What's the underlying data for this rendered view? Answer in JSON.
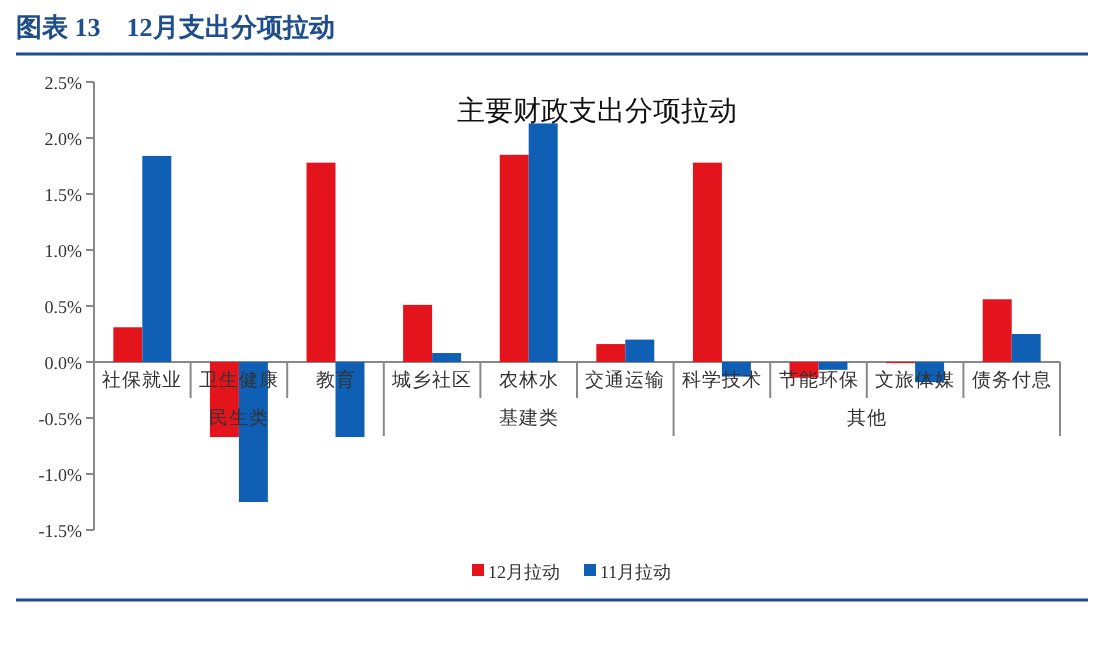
{
  "chart_data": {
    "type": "bar",
    "title": "图表 13　12月支出分项拉动",
    "subtitle": "主要财政支出分项拉动",
    "categories": [
      "社保就业",
      "卫生健康",
      "教育",
      "城乡社区",
      "农林水",
      "交通运输",
      "科学技术",
      "节能环保",
      "文旅体媒",
      "债务付息"
    ],
    "series": [
      {
        "name": "12月拉动",
        "color": "#e3141b",
        "values": [
          0.31,
          -0.67,
          1.78,
          0.51,
          1.85,
          0.16,
          1.78,
          -0.14,
          -0.01,
          0.56
        ]
      },
      {
        "name": "11月拉动",
        "color": "#0f5fb5",
        "values": [
          1.84,
          -1.25,
          -0.67,
          0.08,
          2.13,
          0.2,
          -0.13,
          -0.07,
          -0.18,
          0.25
        ]
      }
    ],
    "ylim": [
      -1.5,
      2.5
    ],
    "yticks": [
      {
        "value": -1.5,
        "label": "-1.5%"
      },
      {
        "value": -1.0,
        "label": "-1.0%"
      },
      {
        "value": -0.5,
        "label": "-0.5%"
      },
      {
        "value": 0,
        "label": "0.0%"
      },
      {
        "value": 0.5,
        "label": "0.5%"
      },
      {
        "value": 1.0,
        "label": "1.0%"
      },
      {
        "value": 1.5,
        "label": "1.5%"
      },
      {
        "value": 2.0,
        "label": "2.0%"
      },
      {
        "value": 2.5,
        "label": "2.5%"
      }
    ],
    "annotations": [
      "民生类",
      "基建类",
      "其他"
    ],
    "legend": "bottom",
    "grid": false
  }
}
